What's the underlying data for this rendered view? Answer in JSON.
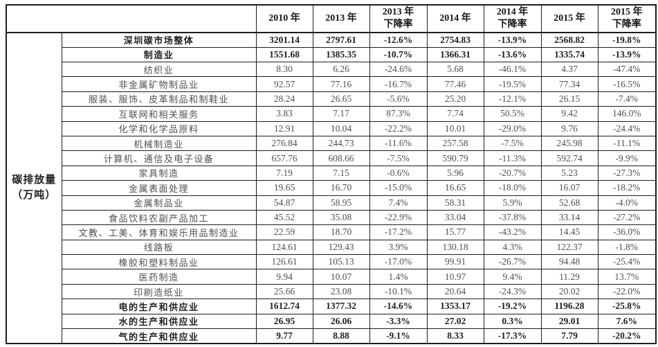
{
  "unit_label": {
    "line1": "碳排放量",
    "line2": "（万吨）"
  },
  "header": {
    "corner": "",
    "columns": [
      {
        "label": "2010 年",
        "sub": ""
      },
      {
        "label": "2013 年",
        "sub": ""
      },
      {
        "label": "2013 年",
        "sub": "下降率"
      },
      {
        "label": "2014 年",
        "sub": ""
      },
      {
        "label": "2014 年",
        "sub": "下降率"
      },
      {
        "label": "2015 年",
        "sub": ""
      },
      {
        "label": "2015 年",
        "sub": "下降率"
      }
    ]
  },
  "rows": [
    {
      "label": "深圳碳市场整体",
      "bold": true,
      "values": [
        "3201.14",
        "2797.61",
        "-12.6%",
        "2754.83",
        "-13.9%",
        "2568.82",
        "-19.8%"
      ]
    },
    {
      "label": "制造业",
      "bold": true,
      "values": [
        "1551.68",
        "1385.35",
        "-10.7%",
        "1366.31",
        "-13.6%",
        "1335.74",
        "-13.9%"
      ]
    },
    {
      "label": "纺织业",
      "bold": false,
      "values": [
        "8.30",
        "6.26",
        "-24.6%",
        "5.68",
        "-46.1%",
        "4.37",
        "-47.4%"
      ]
    },
    {
      "label": "非金属矿物制品业",
      "bold": false,
      "values": [
        "92.57",
        "77.16",
        "-16.7%",
        "77.46",
        "-19.5%",
        "77.34",
        "-16.5%"
      ]
    },
    {
      "label": "服装、服饰、皮革制品和制鞋业",
      "bold": false,
      "values": [
        "28.24",
        "26.65",
        "-5.6%",
        "25.20",
        "-12.1%",
        "26.15",
        "-7.4%"
      ]
    },
    {
      "label": "互联网和相关服务",
      "bold": false,
      "values": [
        "3.83",
        "7.17",
        "87.3%",
        "7.74",
        "50.5%",
        "9.42",
        "146.0%"
      ]
    },
    {
      "label": "化学和化学品原料",
      "bold": false,
      "values": [
        "12.91",
        "10.04",
        "-22.2%",
        "10.01",
        "-29.0%",
        "9.76",
        "-24.4%"
      ]
    },
    {
      "label": "机械制造业",
      "bold": false,
      "values": [
        "276.84",
        "244.73",
        "-11.6%",
        "257.58",
        "-7.5%",
        "245.98",
        "-11.1%"
      ]
    },
    {
      "label": "计算机、通信及电子设备",
      "bold": false,
      "values": [
        "657.76",
        "608.66",
        "-7.5%",
        "590.79",
        "-11.3%",
        "592.74",
        "-9.9%"
      ]
    },
    {
      "label": "家具制造",
      "bold": false,
      "values": [
        "7.19",
        "7.15",
        "-0.6%",
        "5.96",
        "-20.7%",
        "5.23",
        "-27.3%"
      ]
    },
    {
      "label": "金属表面处理",
      "bold": false,
      "values": [
        "19.65",
        "16.70",
        "-15.0%",
        "16.65",
        "-18.0%",
        "16.07",
        "-18.2%"
      ]
    },
    {
      "label": "金属制品业",
      "bold": false,
      "values": [
        "54.87",
        "58.95",
        "7.4%",
        "58.31",
        "5.9%",
        "52.68",
        "-4.0%"
      ]
    },
    {
      "label": "食品饮料农副产品加工",
      "bold": false,
      "values": [
        "45.52",
        "35.08",
        "-22.9%",
        "33.04",
        "-37.8%",
        "33.14",
        "-27.2%"
      ]
    },
    {
      "label": "文教、工美、体育和娱乐用品制造业",
      "bold": false,
      "values": [
        "22.59",
        "18.70",
        "-17.2%",
        "15.77",
        "-43.2%",
        "14.45",
        "-36.0%"
      ]
    },
    {
      "label": "线路板",
      "bold": false,
      "values": [
        "124.61",
        "129.43",
        "3.9%",
        "130.18",
        "4.3%",
        "122.37",
        "-1.8%"
      ]
    },
    {
      "label": "橡胶和塑料制品业",
      "bold": false,
      "values": [
        "126.61",
        "105.13",
        "-17.0%",
        "99.91",
        "-26.7%",
        "94.48",
        "-25.4%"
      ]
    },
    {
      "label": "医药制造",
      "bold": false,
      "values": [
        "9.94",
        "10.07",
        "1.4%",
        "10.97",
        "9.4%",
        "11.29",
        "13.7%"
      ]
    },
    {
      "label": "印刷造纸业",
      "bold": false,
      "values": [
        "25.66",
        "23.08",
        "-10.1%",
        "20.64",
        "-24.3%",
        "20.02",
        "-22.0%"
      ]
    },
    {
      "label": "电的生产和供应业",
      "bold": true,
      "values": [
        "1612.74",
        "1377.32",
        "-14.6%",
        "1353.17",
        "-19.2%",
        "1196.28",
        "-25.8%"
      ]
    },
    {
      "label": "水的生产和供应业",
      "bold": true,
      "values": [
        "26.95",
        "26.06",
        "-3.3%",
        "27.02",
        "0.3%",
        "29.01",
        "7.6%"
      ]
    },
    {
      "label": "气的生产和供应业",
      "bold": true,
      "values": [
        "9.77",
        "8.88",
        "-9.1%",
        "8.33",
        "-17.3%",
        "7.79",
        "-20.2%"
      ]
    }
  ],
  "colors": {
    "border": "#1c1c1c",
    "text_normal": "#4f4f4f",
    "text_bold": "#1f1f1f",
    "background": "#ffffff"
  }
}
